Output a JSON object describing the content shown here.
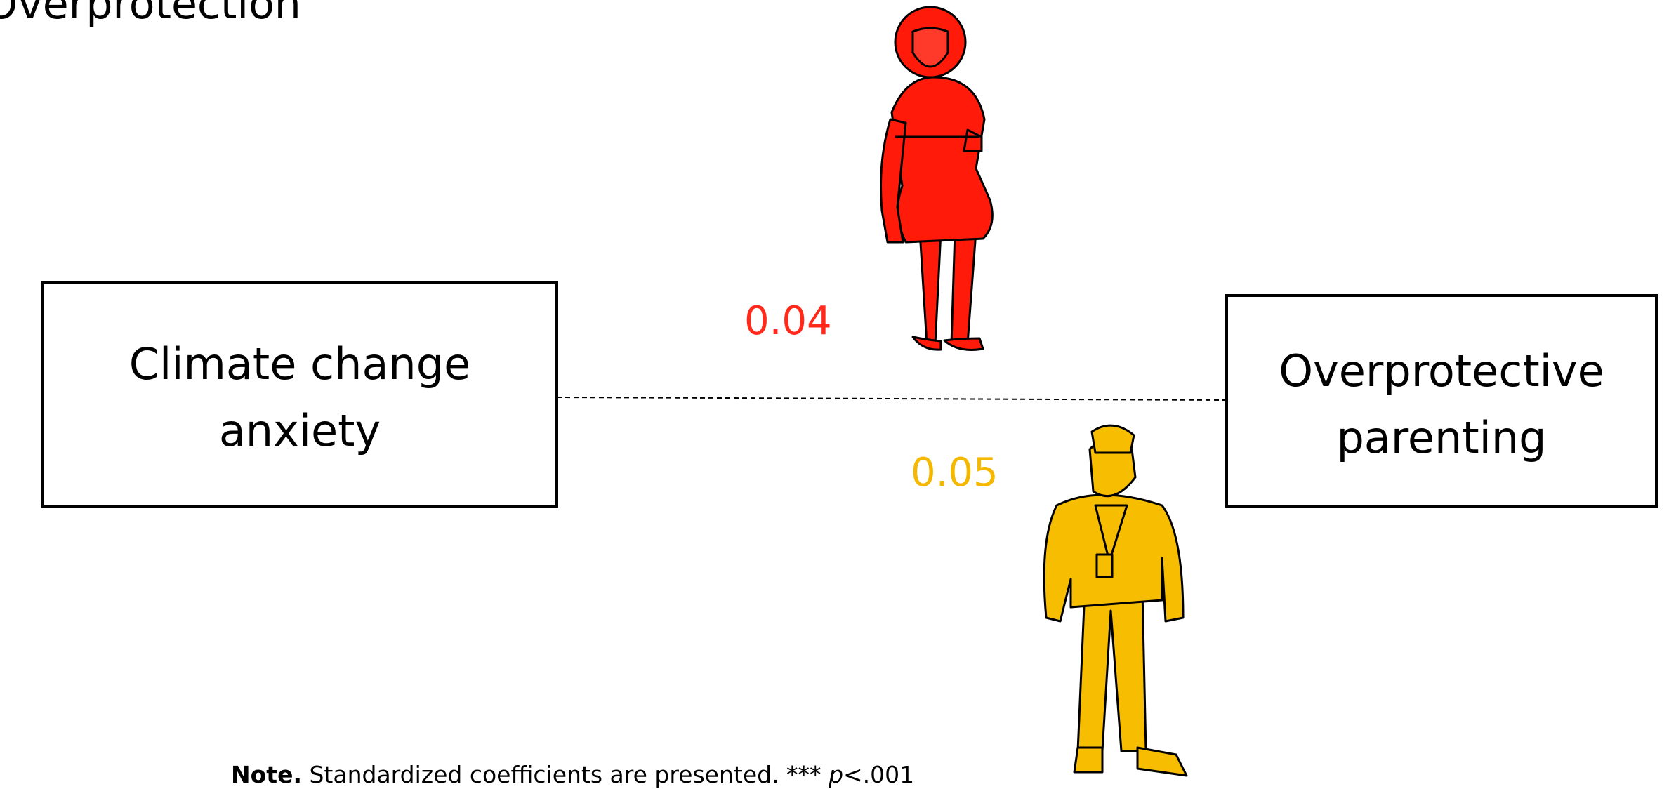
{
  "title": "Overprotection",
  "nodes": [
    {
      "label": "Climate change\nanxiety"
    },
    {
      "label": "Overprotective\nparenting"
    }
  ],
  "edges": [
    {
      "label": "0.04",
      "color": "#ff2a1a"
    },
    {
      "label": "0.05",
      "color": "#f5b800"
    }
  ],
  "note": {
    "label": "Note.",
    "text": "Standardized coefficients are presented. *** ",
    "p": "p",
    "rest": "<.001"
  }
}
